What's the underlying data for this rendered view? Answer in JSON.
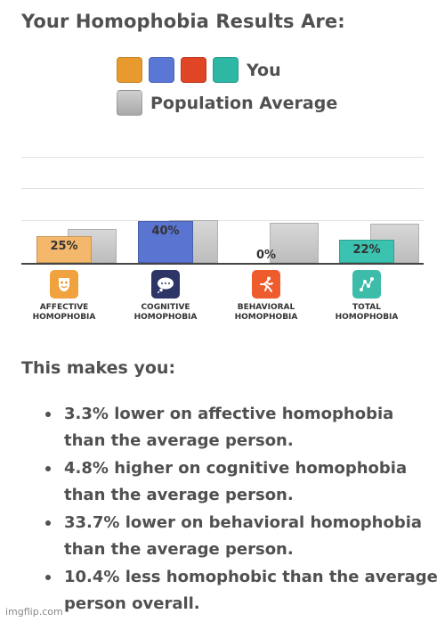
{
  "title": "Your Homophobia Results Are:",
  "legend": {
    "you_label": "You",
    "avg_label": "Population Average",
    "you_colors": [
      "#e89a2f",
      "#5a77d6",
      "#e04526",
      "#2fb7a5"
    ],
    "avg_color": "#b9b9b9"
  },
  "chart_data": {
    "type": "bar",
    "categories": [
      "AFFECTIVE HOMOPHOBIA",
      "COGNITIVE HOMOPHOBIA",
      "BEHAVIORAL HOMOPHOBIA",
      "TOTAL HOMOPHOBIA"
    ],
    "series": [
      {
        "name": "You",
        "values": [
          25,
          40,
          0,
          22
        ],
        "labels": [
          "25%",
          "40%",
          "0%",
          "22%"
        ],
        "colors": [
          "#f3b86b",
          "#5a74d2",
          "#e04526",
          "#3cc2b0"
        ]
      },
      {
        "name": "Population Average",
        "values": [
          28.3,
          35.2,
          33.7,
          32.4
        ],
        "color": "#c7c7c7"
      }
    ],
    "ylim": [
      0,
      100
    ],
    "grid": true
  },
  "categories": [
    {
      "line1": "AFFECTIVE",
      "line2": "HOMOPHOBIA",
      "icon": "mask-icon",
      "icon_color": "#f0a23e"
    },
    {
      "line1": "COGNITIVE",
      "line2": "HOMOPHOBIA",
      "icon": "thought-bubble-icon",
      "icon_color": "#2c3566"
    },
    {
      "line1": "BEHAVIORAL",
      "line2": "HOMOPHOBIA",
      "icon": "running-person-icon",
      "icon_color": "#ee5b2c"
    },
    {
      "line1": "TOTAL",
      "line2": "HOMOPHOBIA",
      "icon": "connected-nodes-icon",
      "icon_color": "#3cbca9"
    }
  ],
  "subtitle": "This makes you:",
  "results": [
    "3.3% lower on affective homophobia than the average person.",
    "4.8% higher on cognitive homophobia than the average person.",
    "33.7% lower on behavioral homophobia than the average person.",
    "10.4% less homophobic than the average person overall."
  ],
  "watermark": "imgflip.com"
}
